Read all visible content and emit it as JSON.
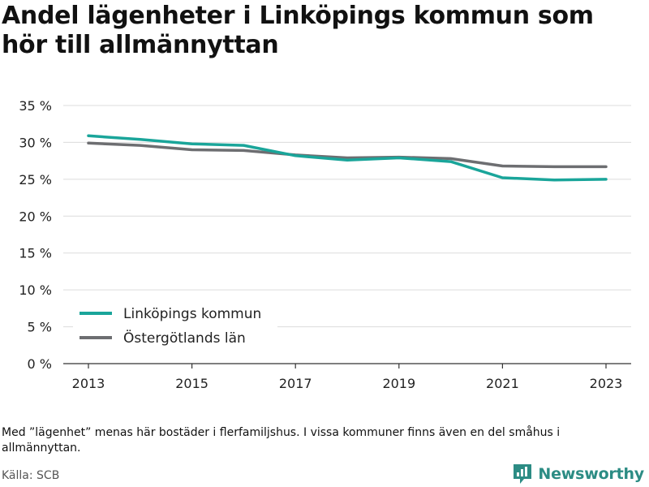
{
  "title": "Andel lägenheter i Linköpings kommun som hör till allmännyttan",
  "note": "Med ”lägenhet” menas här bostäder i flerfamiljshus. I vissa kommuner finns även en del småhus i allmännyttan.",
  "source": "Källa: SCB",
  "brand": "Newsworthy",
  "chart_data": {
    "type": "line",
    "title": "Andel lägenheter i Linköpings kommun som hör till allmännyttan",
    "x": [
      2013,
      2014,
      2015,
      2016,
      2017,
      2018,
      2019,
      2020,
      2021,
      2022,
      2023
    ],
    "x_ticks": [
      "2013",
      "2015",
      "2017",
      "2019",
      "2021",
      "2023"
    ],
    "y_ticks": [
      "0 %",
      "5 %",
      "10 %",
      "15 %",
      "20 %",
      "25 %",
      "30 %",
      "35 %"
    ],
    "ylim": [
      0,
      35
    ],
    "ylabel": "",
    "xlabel": "",
    "grid": "horizontal",
    "legend_position": "bottom-left",
    "series": [
      {
        "name": "Linköpings kommun",
        "color": "#1aa59a",
        "values": [
          30.9,
          30.4,
          29.8,
          29.6,
          28.2,
          27.6,
          27.9,
          27.4,
          25.2,
          24.9,
          25.0
        ]
      },
      {
        "name": "Östergötlands län",
        "color": "#6d6e71",
        "values": [
          29.9,
          29.6,
          29.0,
          28.9,
          28.3,
          27.9,
          28.0,
          27.8,
          26.8,
          26.7,
          26.7
        ]
      }
    ]
  }
}
